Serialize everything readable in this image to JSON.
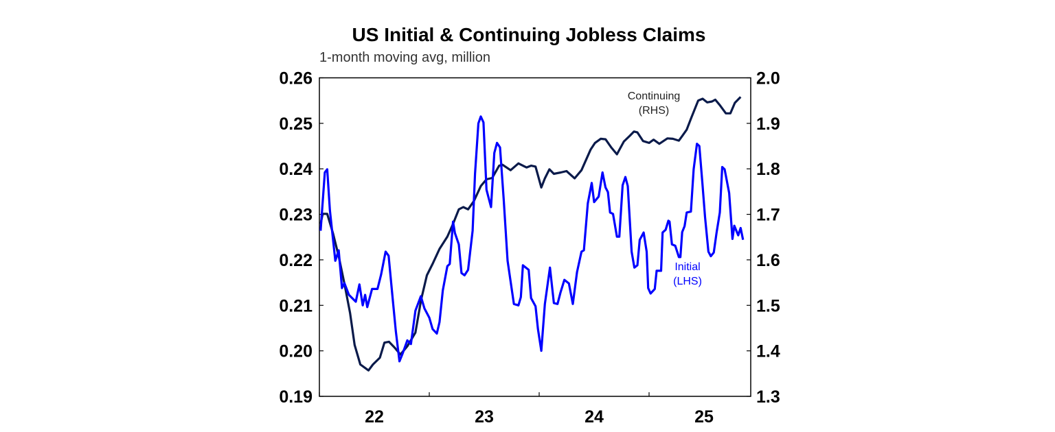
{
  "chart_data": {
    "type": "line",
    "title": "US Initial & Continuing Jobless Claims",
    "subtitle": "1-month moving avg, million",
    "x_tick_labels": [
      "22",
      "23",
      "24",
      "25"
    ],
    "x_range": [
      "2022-01-01",
      "2025-12-01"
    ],
    "y_left": {
      "range": [
        0.19,
        0.26
      ],
      "ticks": [
        "0.19",
        "0.20",
        "0.21",
        "0.22",
        "0.23",
        "0.24",
        "0.25",
        "0.26"
      ]
    },
    "y_right": {
      "range": [
        1.3,
        2.0
      ],
      "ticks": [
        "1.3",
        "1.4",
        "1.5",
        "1.6",
        "1.7",
        "1.8",
        "1.9",
        "2.0"
      ]
    },
    "grid": false,
    "series": [
      {
        "name": "Initial",
        "label_lines": [
          "Initial",
          "(LHS)"
        ],
        "axis": "left",
        "color": "#0000ff",
        "points": [
          [
            "2022-01-05",
            0.2264
          ],
          [
            "2022-01-19",
            0.2392
          ],
          [
            "2022-01-27",
            0.2399
          ],
          [
            "2022-02-05",
            0.2309
          ],
          [
            "2022-02-23",
            0.2198
          ],
          [
            "2022-03-06",
            0.2221
          ],
          [
            "2022-03-17",
            0.2138
          ],
          [
            "2022-03-25",
            0.2149
          ],
          [
            "2022-04-09",
            0.2123
          ],
          [
            "2022-05-02",
            0.2108
          ],
          [
            "2022-05-14",
            0.2146
          ],
          [
            "2022-05-25",
            0.21
          ],
          [
            "2022-06-02",
            0.2123
          ],
          [
            "2022-06-09",
            0.2096
          ],
          [
            "2022-06-25",
            0.2136
          ],
          [
            "2022-07-13",
            0.2136
          ],
          [
            "2022-07-25",
            0.2168
          ],
          [
            "2022-08-09",
            0.2218
          ],
          [
            "2022-08-19",
            0.2209
          ],
          [
            "2022-09-01",
            0.2118
          ],
          [
            "2022-09-12",
            0.2043
          ],
          [
            "2022-09-24",
            0.1977
          ],
          [
            "2022-10-05",
            0.1995
          ],
          [
            "2022-10-20",
            0.2023
          ],
          [
            "2022-11-01",
            0.2015
          ],
          [
            "2022-11-16",
            0.2088
          ],
          [
            "2022-12-04",
            0.212
          ],
          [
            "2022-12-16",
            0.2093
          ],
          [
            "2023-01-01",
            0.2073
          ],
          [
            "2023-01-12",
            0.2048
          ],
          [
            "2023-01-26",
            0.2038
          ],
          [
            "2023-02-04",
            0.2063
          ],
          [
            "2023-02-15",
            0.2133
          ],
          [
            "2023-03-02",
            0.2186
          ],
          [
            "2023-03-10",
            0.2191
          ],
          [
            "2023-03-21",
            0.2284
          ],
          [
            "2023-03-27",
            0.2259
          ],
          [
            "2023-04-09",
            0.2234
          ],
          [
            "2023-04-18",
            0.2171
          ],
          [
            "2023-04-28",
            0.2166
          ],
          [
            "2023-05-10",
            0.2178
          ],
          [
            "2023-05-25",
            0.2264
          ],
          [
            "2023-06-02",
            0.2389
          ],
          [
            "2023-06-13",
            0.25
          ],
          [
            "2023-06-21",
            0.2515
          ],
          [
            "2023-06-30",
            0.2502
          ],
          [
            "2023-07-10",
            0.2354
          ],
          [
            "2023-07-25",
            0.2316
          ],
          [
            "2023-08-05",
            0.2435
          ],
          [
            "2023-08-14",
            0.2457
          ],
          [
            "2023-08-24",
            0.2447
          ],
          [
            "2023-09-05",
            0.2334
          ],
          [
            "2023-09-18",
            0.2198
          ],
          [
            "2023-10-09",
            0.2103
          ],
          [
            "2023-10-24",
            0.21
          ],
          [
            "2023-11-01",
            0.2118
          ],
          [
            "2023-11-08",
            0.2188
          ],
          [
            "2023-11-27",
            0.2178
          ],
          [
            "2023-12-05",
            0.2116
          ],
          [
            "2023-12-20",
            0.2098
          ],
          [
            "2023-12-28",
            0.2048
          ],
          [
            "2024-01-08",
            0.2
          ],
          [
            "2024-01-20",
            0.2103
          ],
          [
            "2024-02-06",
            0.2183
          ],
          [
            "2024-02-19",
            0.2105
          ],
          [
            "2024-03-02",
            0.2103
          ],
          [
            "2024-03-12",
            0.2128
          ],
          [
            "2024-03-25",
            0.2156
          ],
          [
            "2024-04-09",
            0.2148
          ],
          [
            "2024-04-22",
            0.2103
          ],
          [
            "2024-05-06",
            0.2173
          ],
          [
            "2024-05-21",
            0.2218
          ],
          [
            "2024-05-29",
            0.2221
          ],
          [
            "2024-06-11",
            0.2324
          ],
          [
            "2024-06-24",
            0.2369
          ],
          [
            "2024-07-02",
            0.2327
          ],
          [
            "2024-07-17",
            0.2339
          ],
          [
            "2024-07-30",
            0.2392
          ],
          [
            "2024-08-09",
            0.2359
          ],
          [
            "2024-08-17",
            0.2349
          ],
          [
            "2024-08-24",
            0.2304
          ],
          [
            "2024-09-03",
            0.2301
          ],
          [
            "2024-09-16",
            0.2251
          ],
          [
            "2024-09-24",
            0.2251
          ],
          [
            "2024-10-05",
            0.2364
          ],
          [
            "2024-10-14",
            0.2382
          ],
          [
            "2024-10-22",
            0.2362
          ],
          [
            "2024-11-04",
            0.2218
          ],
          [
            "2024-11-13",
            0.2183
          ],
          [
            "2024-11-23",
            0.2188
          ],
          [
            "2024-12-01",
            0.2244
          ],
          [
            "2024-12-14",
            0.226
          ],
          [
            "2024-12-24",
            0.2218
          ],
          [
            "2024-12-29",
            0.2138
          ],
          [
            "2025-01-06",
            0.2126
          ],
          [
            "2025-01-20",
            0.2136
          ],
          [
            "2025-01-26",
            0.2176
          ],
          [
            "2025-02-10",
            0.2176
          ],
          [
            "2025-02-15",
            0.226
          ],
          [
            "2025-02-25",
            0.2266
          ],
          [
            "2025-03-06",
            0.2286
          ],
          [
            "2025-03-10",
            0.2284
          ],
          [
            "2025-03-18",
            0.2234
          ],
          [
            "2025-03-29",
            0.2231
          ],
          [
            "2025-04-10",
            0.2206
          ],
          [
            "2025-04-15",
            0.2206
          ],
          [
            "2025-04-21",
            0.2261
          ],
          [
            "2025-04-29",
            0.2274
          ],
          [
            "2025-05-06",
            0.2304
          ],
          [
            "2025-05-20",
            0.2306
          ],
          [
            "2025-05-29",
            0.2399
          ],
          [
            "2025-06-09",
            0.2455
          ],
          [
            "2025-06-17",
            0.245
          ],
          [
            "2025-06-27",
            0.2369
          ],
          [
            "2025-07-06",
            0.2294
          ],
          [
            "2025-07-17",
            0.2218
          ],
          [
            "2025-07-25",
            0.2208
          ],
          [
            "2025-08-04",
            0.2216
          ],
          [
            "2025-08-13",
            0.2259
          ],
          [
            "2025-08-24",
            0.2304
          ],
          [
            "2025-09-01",
            0.2404
          ],
          [
            "2025-09-09",
            0.2399
          ],
          [
            "2025-09-24",
            0.2347
          ],
          [
            "2025-10-05",
            0.2246
          ],
          [
            "2025-10-11",
            0.2275
          ],
          [
            "2025-10-24",
            0.2254
          ],
          [
            "2025-11-01",
            0.227
          ],
          [
            "2025-11-09",
            0.2244
          ]
        ]
      },
      {
        "name": "Continuing",
        "label_lines": [
          "Continuing",
          "(RHS)"
        ],
        "axis": "right",
        "color": "#0a1a4a",
        "points": [
          [
            "2022-01-05",
            1.679
          ],
          [
            "2022-01-12",
            1.701
          ],
          [
            "2022-01-27",
            1.701
          ],
          [
            "2022-02-15",
            1.659
          ],
          [
            "2022-03-06",
            1.608
          ],
          [
            "2022-03-25",
            1.548
          ],
          [
            "2022-04-13",
            1.483
          ],
          [
            "2022-04-28",
            1.413
          ],
          [
            "2022-05-17",
            1.37
          ],
          [
            "2022-06-13",
            1.357
          ],
          [
            "2022-06-28",
            1.37
          ],
          [
            "2022-07-21",
            1.385
          ],
          [
            "2022-08-05",
            1.418
          ],
          [
            "2022-08-20",
            1.42
          ],
          [
            "2022-09-08",
            1.407
          ],
          [
            "2022-09-27",
            1.392
          ],
          [
            "2022-10-20",
            1.41
          ],
          [
            "2022-11-16",
            1.44
          ],
          [
            "2022-12-05",
            1.513
          ],
          [
            "2022-12-24",
            1.566
          ],
          [
            "2023-01-12",
            1.591
          ],
          [
            "2023-02-04",
            1.624
          ],
          [
            "2023-03-02",
            1.651
          ],
          [
            "2023-03-21",
            1.679
          ],
          [
            "2023-04-09",
            1.711
          ],
          [
            "2023-04-24",
            1.716
          ],
          [
            "2023-05-10",
            1.711
          ],
          [
            "2023-05-29",
            1.729
          ],
          [
            "2023-06-21",
            1.762
          ],
          [
            "2023-07-10",
            1.777
          ],
          [
            "2023-07-29",
            1.78
          ],
          [
            "2023-08-21",
            1.807
          ],
          [
            "2023-09-01",
            1.809
          ],
          [
            "2023-09-28",
            1.797
          ],
          [
            "2023-10-24",
            1.812
          ],
          [
            "2023-11-20",
            1.803
          ],
          [
            "2023-12-05",
            1.807
          ],
          [
            "2023-12-20",
            1.805
          ],
          [
            "2024-01-08",
            1.759
          ],
          [
            "2024-01-20",
            1.779
          ],
          [
            "2024-02-04",
            1.799
          ],
          [
            "2024-02-19",
            1.789
          ],
          [
            "2024-03-13",
            1.792
          ],
          [
            "2024-04-01",
            1.795
          ],
          [
            "2024-04-28",
            1.779
          ],
          [
            "2024-05-21",
            1.797
          ],
          [
            "2024-06-20",
            1.842
          ],
          [
            "2024-07-05",
            1.857
          ],
          [
            "2024-07-24",
            1.866
          ],
          [
            "2024-08-09",
            1.865
          ],
          [
            "2024-08-28",
            1.847
          ],
          [
            "2024-09-16",
            1.832
          ],
          [
            "2024-10-09",
            1.86
          ],
          [
            "2024-10-28",
            1.872
          ],
          [
            "2024-11-12",
            1.882
          ],
          [
            "2024-11-23",
            1.88
          ],
          [
            "2024-12-12",
            1.861
          ],
          [
            "2025-01-01",
            1.857
          ],
          [
            "2025-01-16",
            1.864
          ],
          [
            "2025-02-04",
            1.855
          ],
          [
            "2025-03-03",
            1.867
          ],
          [
            "2025-03-21",
            1.866
          ],
          [
            "2025-04-10",
            1.862
          ],
          [
            "2025-04-21",
            1.872
          ],
          [
            "2025-05-06",
            1.886
          ],
          [
            "2025-05-21",
            1.912
          ],
          [
            "2025-06-13",
            1.95
          ],
          [
            "2025-06-28",
            1.954
          ],
          [
            "2025-07-13",
            1.946
          ],
          [
            "2025-07-29",
            1.948
          ],
          [
            "2025-08-09",
            1.952
          ],
          [
            "2025-08-24",
            1.94
          ],
          [
            "2025-09-13",
            1.922
          ],
          [
            "2025-09-28",
            1.922
          ],
          [
            "2025-10-13",
            1.945
          ],
          [
            "2025-11-01",
            1.958
          ]
        ]
      }
    ]
  }
}
